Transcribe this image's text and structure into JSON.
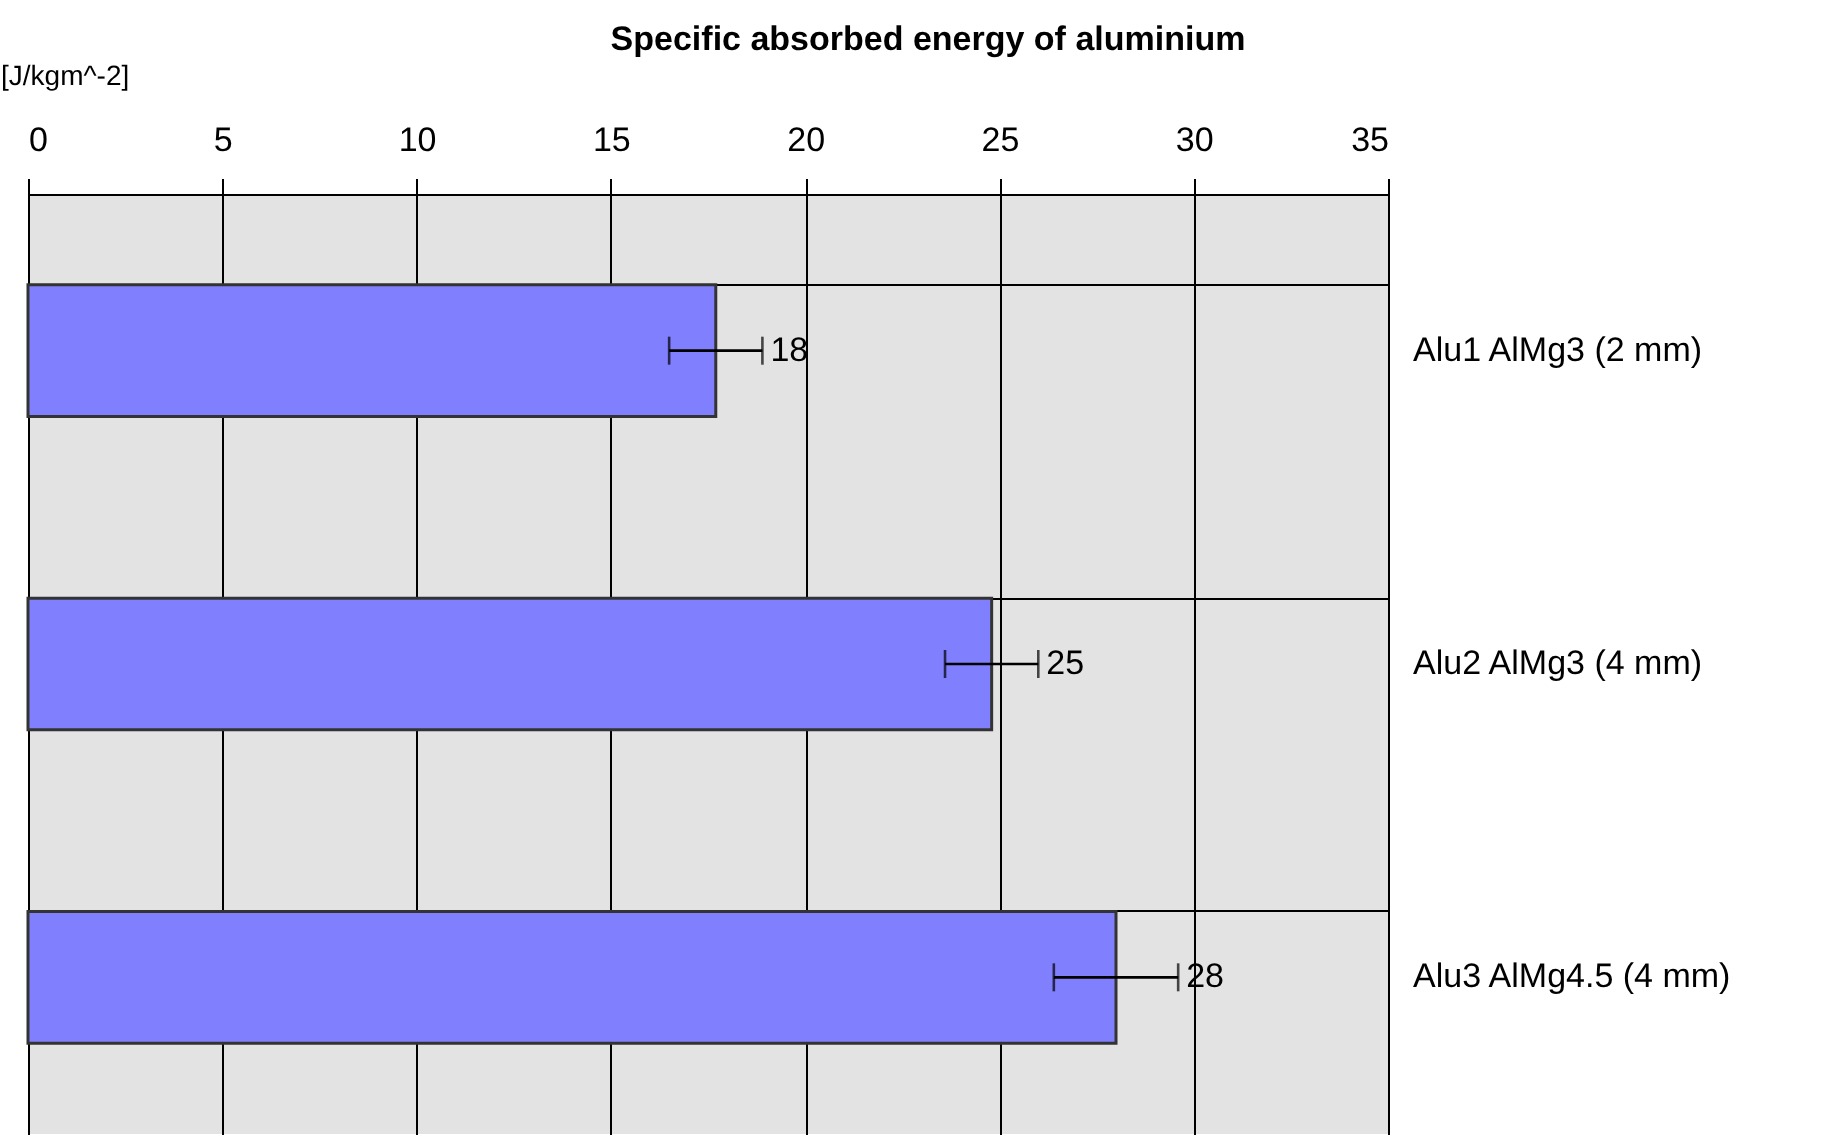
{
  "chart_data": {
    "type": "bar",
    "orientation": "horizontal",
    "title": "Specific absorbed energy of aluminium",
    "xlabel": "[J/kgm^-2]",
    "categories": [
      "Alu1 AlMg3 (2 mm)",
      "Alu2 AlMg3 (4 mm)",
      "Alu3 AlMg4.5 (4 mm)"
    ],
    "values": [
      17.7,
      24.8,
      28.0
    ],
    "errors": [
      1.2,
      1.2,
      1.6
    ],
    "value_labels": [
      "18",
      "25",
      "28"
    ],
    "color": "#8080ff",
    "xlim": [
      0,
      35
    ],
    "xticks": [
      0,
      5,
      10,
      15,
      20,
      25,
      30,
      35
    ],
    "grid": true
  }
}
